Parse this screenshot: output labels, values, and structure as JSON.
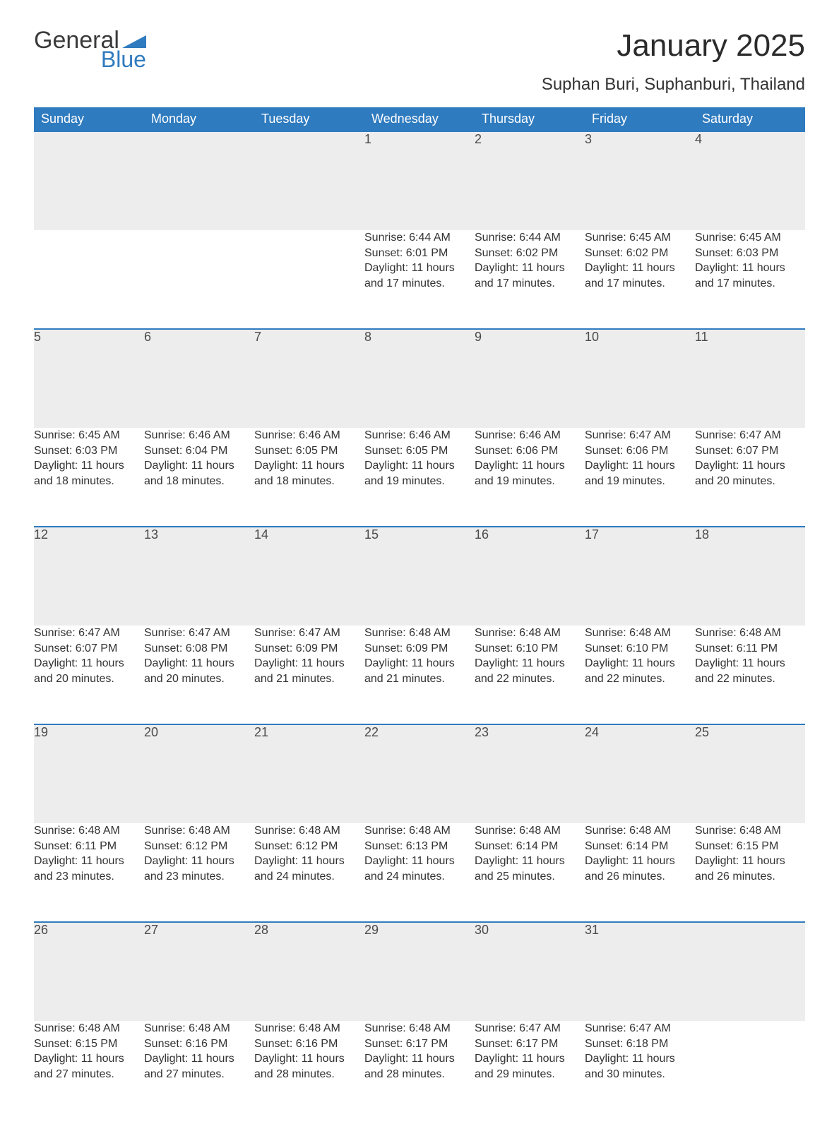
{
  "logo": {
    "word1": "General",
    "word2": "Blue",
    "wedge_color": "#2f7bbf"
  },
  "title": "January 2025",
  "subtitle": "Suphan Buri, Suphanburi, Thailand",
  "colors": {
    "header_bg": "#2f7bbf",
    "header_text": "#ffffff",
    "daynum_bg": "#ededed",
    "row_border": "#2f7bbf",
    "body_text": "#333333",
    "title_text": "#2b2b2b"
  },
  "typography": {
    "title_fontsize": 44,
    "subtitle_fontsize": 24,
    "header_fontsize": 18,
    "daynum_fontsize": 18,
    "cell_fontsize": 16
  },
  "days_of_week": [
    "Sunday",
    "Monday",
    "Tuesday",
    "Wednesday",
    "Thursday",
    "Friday",
    "Saturday"
  ],
  "weeks": [
    [
      null,
      null,
      null,
      {
        "n": "1",
        "sunrise": "Sunrise: 6:44 AM",
        "sunset": "Sunset: 6:01 PM",
        "day1": "Daylight: 11 hours",
        "day2": "and 17 minutes."
      },
      {
        "n": "2",
        "sunrise": "Sunrise: 6:44 AM",
        "sunset": "Sunset: 6:02 PM",
        "day1": "Daylight: 11 hours",
        "day2": "and 17 minutes."
      },
      {
        "n": "3",
        "sunrise": "Sunrise: 6:45 AM",
        "sunset": "Sunset: 6:02 PM",
        "day1": "Daylight: 11 hours",
        "day2": "and 17 minutes."
      },
      {
        "n": "4",
        "sunrise": "Sunrise: 6:45 AM",
        "sunset": "Sunset: 6:03 PM",
        "day1": "Daylight: 11 hours",
        "day2": "and 17 minutes."
      }
    ],
    [
      {
        "n": "5",
        "sunrise": "Sunrise: 6:45 AM",
        "sunset": "Sunset: 6:03 PM",
        "day1": "Daylight: 11 hours",
        "day2": "and 18 minutes."
      },
      {
        "n": "6",
        "sunrise": "Sunrise: 6:46 AM",
        "sunset": "Sunset: 6:04 PM",
        "day1": "Daylight: 11 hours",
        "day2": "and 18 minutes."
      },
      {
        "n": "7",
        "sunrise": "Sunrise: 6:46 AM",
        "sunset": "Sunset: 6:05 PM",
        "day1": "Daylight: 11 hours",
        "day2": "and 18 minutes."
      },
      {
        "n": "8",
        "sunrise": "Sunrise: 6:46 AM",
        "sunset": "Sunset: 6:05 PM",
        "day1": "Daylight: 11 hours",
        "day2": "and 19 minutes."
      },
      {
        "n": "9",
        "sunrise": "Sunrise: 6:46 AM",
        "sunset": "Sunset: 6:06 PM",
        "day1": "Daylight: 11 hours",
        "day2": "and 19 minutes."
      },
      {
        "n": "10",
        "sunrise": "Sunrise: 6:47 AM",
        "sunset": "Sunset: 6:06 PM",
        "day1": "Daylight: 11 hours",
        "day2": "and 19 minutes."
      },
      {
        "n": "11",
        "sunrise": "Sunrise: 6:47 AM",
        "sunset": "Sunset: 6:07 PM",
        "day1": "Daylight: 11 hours",
        "day2": "and 20 minutes."
      }
    ],
    [
      {
        "n": "12",
        "sunrise": "Sunrise: 6:47 AM",
        "sunset": "Sunset: 6:07 PM",
        "day1": "Daylight: 11 hours",
        "day2": "and 20 minutes."
      },
      {
        "n": "13",
        "sunrise": "Sunrise: 6:47 AM",
        "sunset": "Sunset: 6:08 PM",
        "day1": "Daylight: 11 hours",
        "day2": "and 20 minutes."
      },
      {
        "n": "14",
        "sunrise": "Sunrise: 6:47 AM",
        "sunset": "Sunset: 6:09 PM",
        "day1": "Daylight: 11 hours",
        "day2": "and 21 minutes."
      },
      {
        "n": "15",
        "sunrise": "Sunrise: 6:48 AM",
        "sunset": "Sunset: 6:09 PM",
        "day1": "Daylight: 11 hours",
        "day2": "and 21 minutes."
      },
      {
        "n": "16",
        "sunrise": "Sunrise: 6:48 AM",
        "sunset": "Sunset: 6:10 PM",
        "day1": "Daylight: 11 hours",
        "day2": "and 22 minutes."
      },
      {
        "n": "17",
        "sunrise": "Sunrise: 6:48 AM",
        "sunset": "Sunset: 6:10 PM",
        "day1": "Daylight: 11 hours",
        "day2": "and 22 minutes."
      },
      {
        "n": "18",
        "sunrise": "Sunrise: 6:48 AM",
        "sunset": "Sunset: 6:11 PM",
        "day1": "Daylight: 11 hours",
        "day2": "and 22 minutes."
      }
    ],
    [
      {
        "n": "19",
        "sunrise": "Sunrise: 6:48 AM",
        "sunset": "Sunset: 6:11 PM",
        "day1": "Daylight: 11 hours",
        "day2": "and 23 minutes."
      },
      {
        "n": "20",
        "sunrise": "Sunrise: 6:48 AM",
        "sunset": "Sunset: 6:12 PM",
        "day1": "Daylight: 11 hours",
        "day2": "and 23 minutes."
      },
      {
        "n": "21",
        "sunrise": "Sunrise: 6:48 AM",
        "sunset": "Sunset: 6:12 PM",
        "day1": "Daylight: 11 hours",
        "day2": "and 24 minutes."
      },
      {
        "n": "22",
        "sunrise": "Sunrise: 6:48 AM",
        "sunset": "Sunset: 6:13 PM",
        "day1": "Daylight: 11 hours",
        "day2": "and 24 minutes."
      },
      {
        "n": "23",
        "sunrise": "Sunrise: 6:48 AM",
        "sunset": "Sunset: 6:14 PM",
        "day1": "Daylight: 11 hours",
        "day2": "and 25 minutes."
      },
      {
        "n": "24",
        "sunrise": "Sunrise: 6:48 AM",
        "sunset": "Sunset: 6:14 PM",
        "day1": "Daylight: 11 hours",
        "day2": "and 26 minutes."
      },
      {
        "n": "25",
        "sunrise": "Sunrise: 6:48 AM",
        "sunset": "Sunset: 6:15 PM",
        "day1": "Daylight: 11 hours",
        "day2": "and 26 minutes."
      }
    ],
    [
      {
        "n": "26",
        "sunrise": "Sunrise: 6:48 AM",
        "sunset": "Sunset: 6:15 PM",
        "day1": "Daylight: 11 hours",
        "day2": "and 27 minutes."
      },
      {
        "n": "27",
        "sunrise": "Sunrise: 6:48 AM",
        "sunset": "Sunset: 6:16 PM",
        "day1": "Daylight: 11 hours",
        "day2": "and 27 minutes."
      },
      {
        "n": "28",
        "sunrise": "Sunrise: 6:48 AM",
        "sunset": "Sunset: 6:16 PM",
        "day1": "Daylight: 11 hours",
        "day2": "and 28 minutes."
      },
      {
        "n": "29",
        "sunrise": "Sunrise: 6:48 AM",
        "sunset": "Sunset: 6:17 PM",
        "day1": "Daylight: 11 hours",
        "day2": "and 28 minutes."
      },
      {
        "n": "30",
        "sunrise": "Sunrise: 6:47 AM",
        "sunset": "Sunset: 6:17 PM",
        "day1": "Daylight: 11 hours",
        "day2": "and 29 minutes."
      },
      {
        "n": "31",
        "sunrise": "Sunrise: 6:47 AM",
        "sunset": "Sunset: 6:18 PM",
        "day1": "Daylight: 11 hours",
        "day2": "and 30 minutes."
      },
      null
    ]
  ]
}
